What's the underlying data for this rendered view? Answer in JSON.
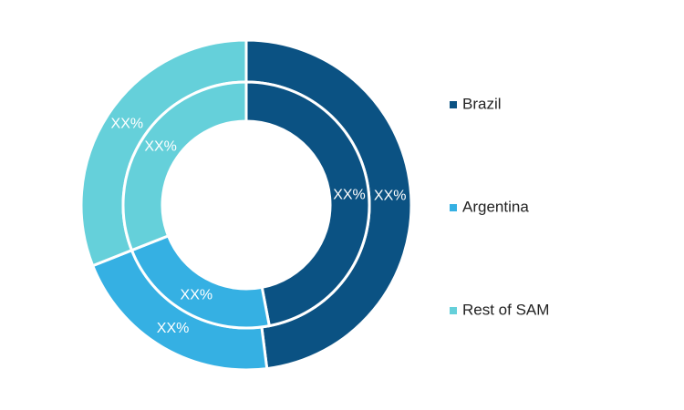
{
  "chart_data": {
    "type": "donut",
    "categories": [
      "Brazil",
      "Argentina",
      "Rest of SAM"
    ],
    "colors": [
      "#0b5283",
      "#35b0e3",
      "#65d0da"
    ],
    "series": [
      {
        "values": [
          48,
          21,
          31
        ],
        "value_labels": [
          "XX%",
          "XX%",
          "XX%"
        ]
      },
      {
        "values": [
          47,
          22,
          31
        ],
        "value_labels": [
          "XX%",
          "XX%",
          "XX%"
        ]
      }
    ]
  }
}
